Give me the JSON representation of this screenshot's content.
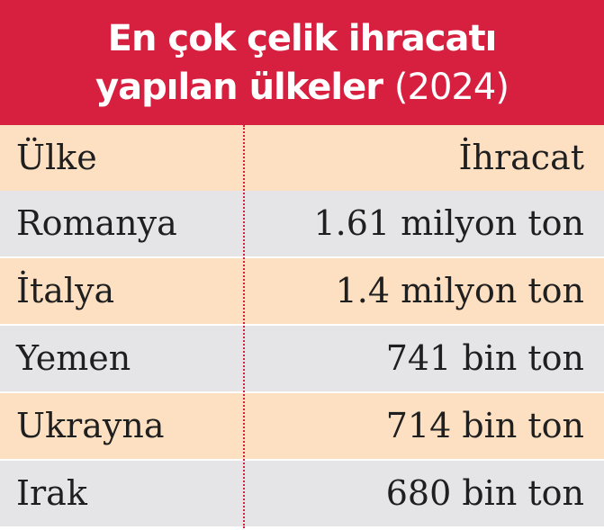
{
  "header": {
    "title_line1": "En çok çelik ihracatı",
    "title_line2_main": "yapılan ülkeler",
    "title_line2_year": "(2024)"
  },
  "table": {
    "columns": [
      "Ülke",
      "İhracat"
    ],
    "rows": [
      {
        "country": "Romanya",
        "export": "1.61 milyon ton"
      },
      {
        "country": "İtalya",
        "export": "1.4 milyon ton"
      },
      {
        "country": "Yemen",
        "export": "741 bin ton"
      },
      {
        "country": "Ukrayna",
        "export": "714 bin ton"
      },
      {
        "country": "Irak",
        "export": "680 bin ton"
      }
    ]
  },
  "colors": {
    "header_bg": "#d71f3f",
    "row_peach": "#fde0c2",
    "row_gray": "#e5e5e7",
    "divider": "#d71f3f"
  }
}
